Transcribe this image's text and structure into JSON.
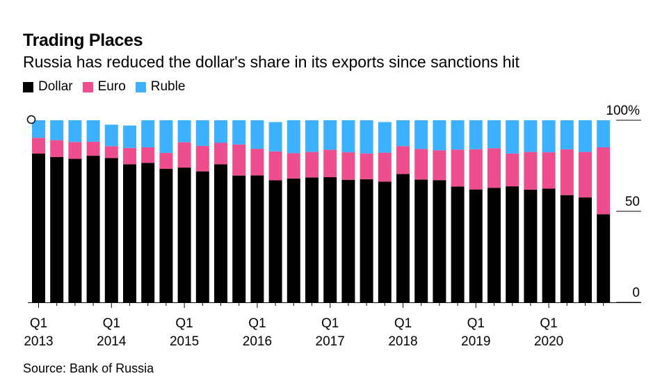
{
  "title": "Trading Places",
  "subtitle": "Russia has reduced the dollar's share in its exports since sanctions hit",
  "source": "Source: Bank of Russia",
  "legend": [
    {
      "name": "Dollar",
      "color": "#000000"
    },
    {
      "name": "Euro",
      "color": "#ee4d8e"
    },
    {
      "name": "Ruble",
      "color": "#3db1ff"
    }
  ],
  "chart_data": {
    "type": "bar",
    "stacked": true,
    "ylim": [
      0,
      100
    ],
    "y_ticks": [
      "0",
      "50",
      "100%"
    ],
    "y_tick_values": [
      0,
      50,
      100
    ],
    "x_tick_labels": [
      {
        "q": "Q1",
        "year": "2013",
        "index": 0
      },
      {
        "q": "Q1",
        "year": "2014",
        "index": 4
      },
      {
        "q": "Q1",
        "year": "2015",
        "index": 8
      },
      {
        "q": "Q1",
        "year": "2016",
        "index": 12
      },
      {
        "q": "Q1",
        "year": "2017",
        "index": 16
      },
      {
        "q": "Q1",
        "year": "2018",
        "index": 20
      },
      {
        "q": "Q1",
        "year": "2019",
        "index": 24
      },
      {
        "q": "Q1",
        "year": "2020",
        "index": 28
      }
    ],
    "categories": [
      "Q1 2013",
      "Q2 2013",
      "Q3 2013",
      "Q4 2013",
      "Q1 2014",
      "Q2 2014",
      "Q3 2014",
      "Q4 2014",
      "Q1 2015",
      "Q2 2015",
      "Q3 2015",
      "Q4 2015",
      "Q1 2016",
      "Q2 2016",
      "Q3 2016",
      "Q4 2016",
      "Q1 2017",
      "Q2 2017",
      "Q3 2017",
      "Q4 2017",
      "Q1 2018",
      "Q2 2018",
      "Q3 2018",
      "Q4 2018",
      "Q1 2019",
      "Q2 2019",
      "Q3 2019",
      "Q4 2019",
      "Q1 2020",
      "Q2 2020",
      "Q3 2020",
      "Q4 2020"
    ],
    "series": [
      {
        "name": "Dollar",
        "color": "#000000",
        "values": [
          81.7,
          79.8,
          78.8,
          80.5,
          79.2,
          75.8,
          76.6,
          73.3,
          74.0,
          71.9,
          75.8,
          69.6,
          69.7,
          67.0,
          68.0,
          68.6,
          68.7,
          67.3,
          67.6,
          66.3,
          70.5,
          67.4,
          67.1,
          63.6,
          62.0,
          62.9,
          63.7,
          61.9,
          62.4,
          58.9,
          57.6,
          48.4
        ],
        "label_index": 0
      },
      {
        "name": "Euro",
        "color": "#ee4d8e",
        "values": [
          8.7,
          9.3,
          9.3,
          7.7,
          6.6,
          9.0,
          8.5,
          8.8,
          13.9,
          14.0,
          11.8,
          17.1,
          14.6,
          15.9,
          13.9,
          14.0,
          15.1,
          15.1,
          14.2,
          15.9,
          15.3,
          16.8,
          16.4,
          20.3,
          22.1,
          21.7,
          18.0,
          20.7,
          20.0,
          25.1,
          25.0,
          36.7
        ],
        "label_index": 1
      },
      {
        "name": "Ruble",
        "color": "#3db1ff",
        "values": [
          9.6,
          10.9,
          11.9,
          11.8,
          11.8,
          12.3,
          14.9,
          17.9,
          12.1,
          14.1,
          12.4,
          13.3,
          15.7,
          16.1,
          18.1,
          17.4,
          16.2,
          17.6,
          18.2,
          16.8,
          14.2,
          15.8,
          16.5,
          16.1,
          15.9,
          15.4,
          18.3,
          17.4,
          17.6,
          16.0,
          17.4,
          14.9
        ],
        "label_index": 2
      }
    ]
  }
}
